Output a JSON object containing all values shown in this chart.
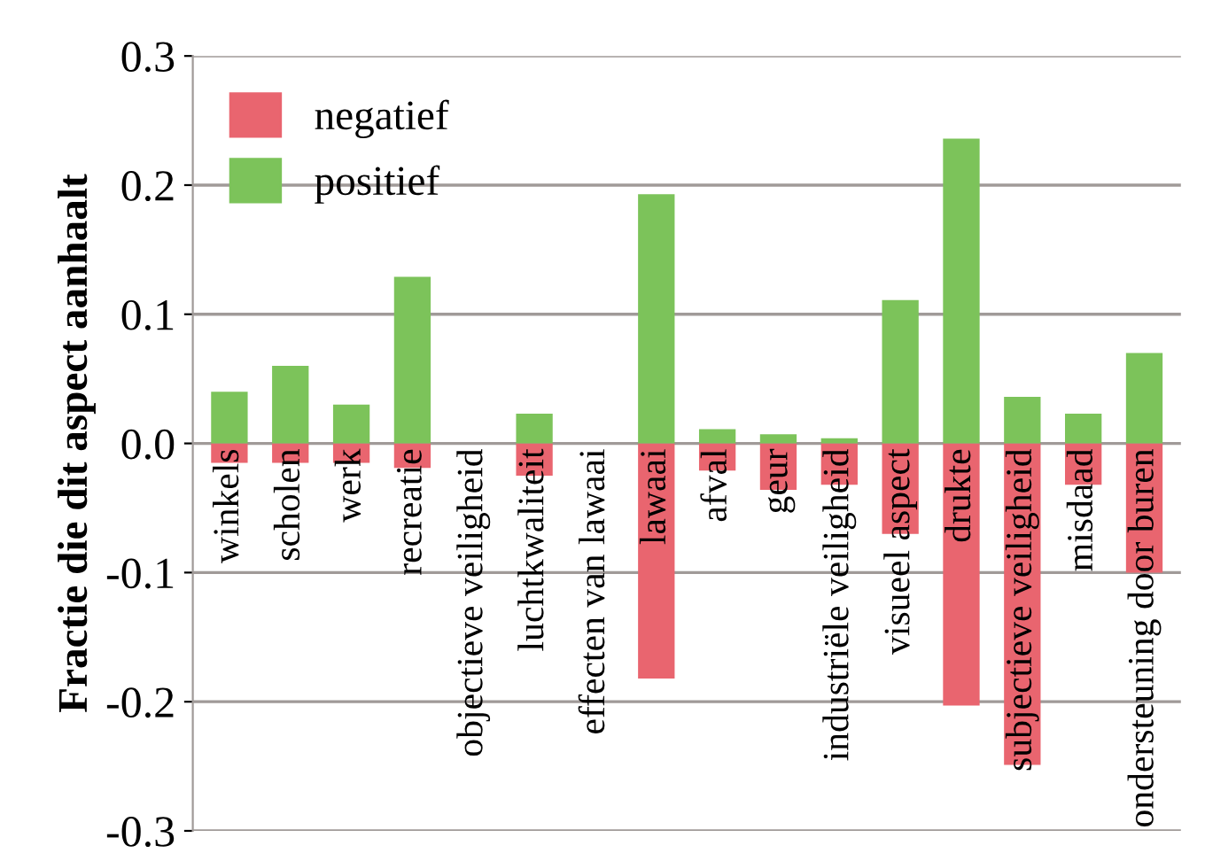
{
  "chart_data": {
    "type": "bar",
    "stacked": true,
    "ylabel": "Fractie die dit aspect aanhaalt",
    "categories": [
      "winkels",
      "scholen",
      "werk",
      "recreatie",
      "objectieve veiligheid",
      "luchtkwaliteit",
      "effecten van lawaai",
      "lawaai",
      "afval",
      "geur",
      "industriële veiligheid",
      "visueel aspect",
      "drukte",
      "subjectieve veiligheid",
      "misdaad",
      "ondersteuning door buren"
    ],
    "series": [
      {
        "name": "negatief",
        "color": "#e9656f",
        "values": [
          -0.015,
          -0.015,
          -0.015,
          -0.019,
          0,
          -0.025,
          0,
          -0.182,
          -0.021,
          -0.036,
          -0.032,
          -0.07,
          -0.203,
          -0.249,
          -0.032,
          -0.1
        ]
      },
      {
        "name": "positief",
        "color": "#7cc35a",
        "values": [
          0.04,
          0.06,
          0.03,
          0.129,
          0,
          0.023,
          0,
          0.193,
          0.011,
          0.007,
          0.004,
          0.111,
          0.236,
          0.036,
          0.023,
          0.07
        ]
      }
    ],
    "ylim": [
      -0.3,
      0.3
    ],
    "yticks": [
      {
        "value": -0.3,
        "label": "-0.3"
      },
      {
        "value": -0.2,
        "label": "-0.2"
      },
      {
        "value": -0.1,
        "label": "-0.1"
      },
      {
        "value": 0,
        "label": "0.0"
      },
      {
        "value": 0.1,
        "label": "0.1"
      },
      {
        "value": 0.2,
        "label": "0.2"
      },
      {
        "value": 0.3,
        "label": "0.3"
      }
    ],
    "grid": "y",
    "legend": "top left"
  }
}
